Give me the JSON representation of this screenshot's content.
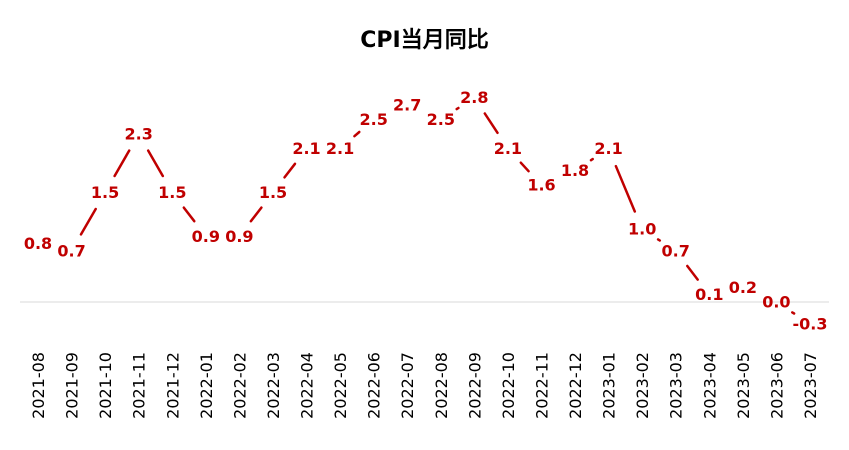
{
  "chart_data": {
    "type": "line",
    "title": "CPI当月同比",
    "xlabel": "",
    "ylabel": "",
    "categories": [
      "2021-08",
      "2021-09",
      "2021-10",
      "2021-11",
      "2021-12",
      "2022-01",
      "2022-02",
      "2022-03",
      "2022-04",
      "2022-05",
      "2022-06",
      "2022-07",
      "2022-08",
      "2022-09",
      "2022-10",
      "2022-11",
      "2022-12",
      "2023-01",
      "2023-02",
      "2023-03",
      "2023-04",
      "2023-05",
      "2023-06",
      "2023-07"
    ],
    "series": [
      {
        "values": [
          0.8,
          0.7,
          1.5,
          2.3,
          1.5,
          0.9,
          0.9,
          1.5,
          2.1,
          2.1,
          2.5,
          2.7,
          2.5,
          2.8,
          2.1,
          1.6,
          1.8,
          2.1,
          1.0,
          0.7,
          0.1,
          0.2,
          0.0,
          -0.3
        ],
        "labels": [
          "0.8",
          "0.7",
          "1.5",
          "2.3",
          "1.5",
          "0.9",
          "0.9",
          "1.5",
          "2.1",
          "2.1",
          "2.5",
          "2.7",
          "2.5",
          "2.8",
          "2.1",
          "1.6",
          "1.8",
          "2.1",
          "1.0",
          "0.7",
          "0.1",
          "0.2",
          "0.0",
          "-0.3"
        ]
      }
    ],
    "ylim": [
      -0.3,
      2.8
    ],
    "grid": false,
    "legend": "none",
    "color": "#c00000"
  }
}
